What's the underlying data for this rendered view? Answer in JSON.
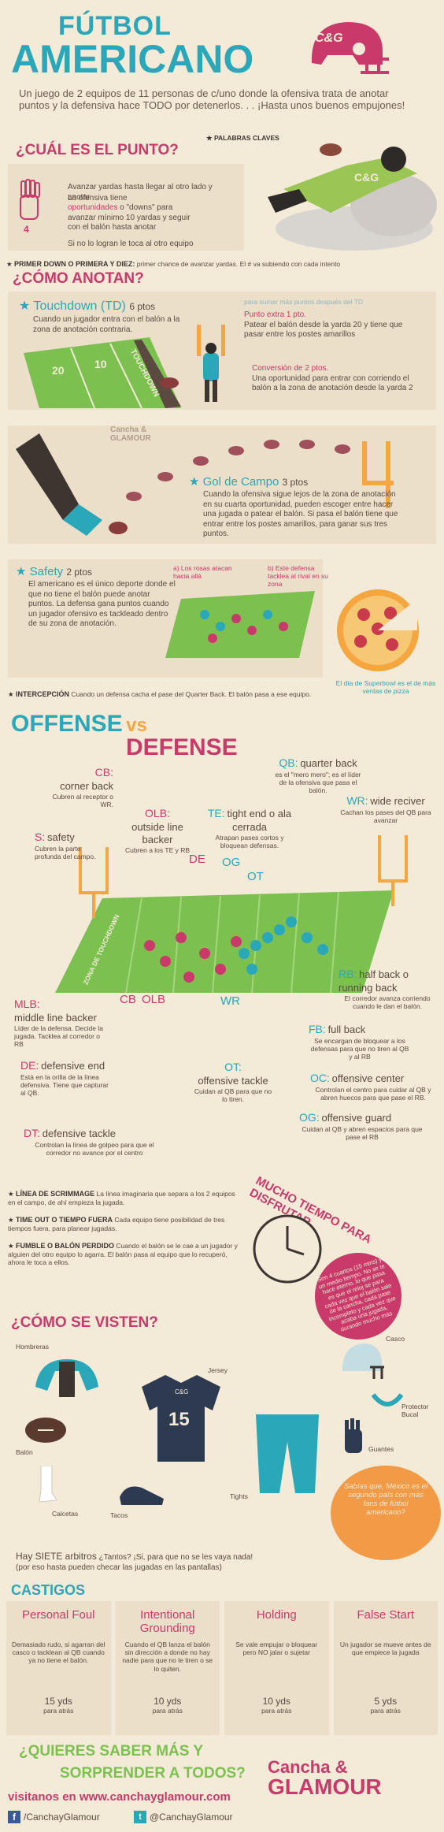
{
  "header": {
    "title_line1": "FÚTBOL",
    "title_line2": "AMERICANO",
    "badge": "C&G",
    "intro": "Un juego de 2 equipos de 11 personas de c/uno donde la ofensiva trata de anotar puntos y la defensiva hace TODO por detenerlos. . . ¡Hasta unos buenos empujones!",
    "keywords_label": "PALABRAS CLAVES"
  },
  "punto": {
    "heading": "¿CUÁL ES EL PUNTO?",
    "text1": "Avanzar yardas hasta llegar al otro lado y anotar",
    "text2": "La ofensiva tiene",
    "text3a": "oportunidades",
    "text3b": "o \"downs\" para avanzar mínimo 10 yardas y seguir con el balón hasta anotar",
    "text4": "Si no lo logran le toca al otro equipo",
    "hand_num": "4"
  },
  "downs": {
    "label": "PRIMER DOWN O PRIMERA Y DIEZ:",
    "text": "primer chance de avanzar yardas. El # va subiendo con cada intento"
  },
  "anotan": {
    "heading": "¿CÓMO ANOTAN?",
    "td_title": "Touchdown (TD)",
    "td_pts": "6 ptos",
    "td_text": "Cuando un jugador entra con el balón a la zona de anotación contraria.",
    "after_td": "para sumar más puntos después del TD",
    "extra_title": "Punto extra 1 pto.",
    "extra_text": "Patear el balón desde la yarda 20 y tiene que pasar entre los postes amarillos",
    "conv_title": "Conversión de 2 ptos.",
    "conv_text": "Una oportunidad para entrar con corriendo el balón a la zona de anotación desde la yarda 2",
    "field_words": [
      "TOUCHDOWN",
      "20",
      "10"
    ],
    "gol_title": "Gol de Campo",
    "gol_pts": "3 ptos",
    "gol_text": "Cuando la ofensiva sigue lejos de la zona de anotación en su cuarta oportunidad, pueden escoger entre hacer una jugada o patear el balón. Si pasa el balón tiene que entrar entre los postes amarillos, para ganar sus tres puntos.",
    "safety_title": "Safety",
    "safety_pts": "2 ptos",
    "safety_text": "El americano es el único deporte donde el que no tiene el balón puede anotar puntos. La defensa gana puntos cuando un jugador ofensivo es tackleado dentro de su zona de anotación.",
    "safety_a": "a) Los rosas atacan hacia allá",
    "safety_b": "b) Este defensa tacklea al rival en su zona",
    "pizza_text": "El día de Superbowl es el de más ventas de pizza"
  },
  "intercepcion": {
    "label": "INTERCEPCIÓN",
    "text": "Cuando un defensa cacha el pase del Quarter Back. El balón pasa a ese equipo."
  },
  "offense": {
    "title1": "OFFENSE",
    "vs": "vs",
    "title2": "DEFENSE",
    "cb_title": "CB:",
    "cb_sub": "corner back",
    "cb_text": "Cubren al receptor o WR.",
    "olb_title": "OLB:",
    "olb_sub": "outside line backer",
    "olb_text": "Cubren a los TE y RB",
    "s_title": "S:",
    "s_sub": "safety",
    "s_text": "Cubren la parte profunda del campo.",
    "qb_title": "QB:",
    "qb_sub": "quarter back",
    "qb_text": "es el \"mero mero\"; es el líder de la ofensiva que pasa el balón.",
    "te_title": "TE:",
    "te_sub": "tight end o ala cerrada",
    "te_text": "Atrapan pases cortos y bloquean defensas.",
    "wr_title": "WR:",
    "wr_sub": "wide reciver",
    "wr_text": "Cachan los pases del QB para avanzar",
    "field_labels": [
      "DE",
      "OG",
      "OT",
      "CB",
      "OLB",
      "WR"
    ],
    "zone_left": "ZONA DE TOUCHDOWN",
    "zone_right": "ZONA DE TOUCHDOWN",
    "rb_title": "RB:",
    "rb_sub": "half back o running back",
    "rb_text": "El corredor avanza corriendo cuando le dan el balón.",
    "mlb_title": "MLB:",
    "mlb_sub": "middle line backer",
    "mlb_text": "Líder de la defensa. Decide la jugada. Tacklea al corredor o RB",
    "fb_title": "FB:",
    "fb_sub": "full back",
    "fb_text": "Se encargan de bloquear a los defensas para que no tiren al QB y al RB",
    "de_title": "DE:",
    "de_sub": "defensive end",
    "de_text": "Está en la orilla de la línea defensiva. Tiene que capturar al QB.",
    "ot_title": "OT:",
    "ot_sub": "offensive tackle",
    "ot_text": "Cuidan al QB para que no lo tiren.",
    "oc_title": "OC:",
    "oc_sub": "offensive center",
    "oc_text": "Controlan el centro para cuidar al QB y abren huecos para que pase el RB.",
    "dt_title": "DT:",
    "dt_sub": "defensive tackle",
    "dt_text": "Controlan la línea de golpeo para que el corredor no avance por el centro",
    "og_title": "OG:",
    "og_sub": "offensive guard",
    "og_text": "Cuidan al QB y abren espacios para que pase el RB"
  },
  "defs": [
    {
      "label": "LÍNEA DE SCRIMMAGE",
      "text": "La línea imaginaria que separa a los 2 equipos en el campo, de ahí empieza la jugada."
    },
    {
      "label": "TIME OUT O TIEMPO FUERA",
      "text": "Cada equipo tiene posibilidad de tres tiempos fuera, para planear jugadas."
    },
    {
      "label": "FUMBLE O BALÓN PERDIDO",
      "text": "Cuando el balón se le cae a un jugador y alguien del otro equipo lo agarra. El balón pasa al equipo que lo recuperó, ahora le toca a ellos."
    }
  ],
  "tiempo": {
    "title": "MUCHO TIEMPO PARA DISFRUTAR",
    "bubble": "Son 4 cuartos (15 mins) y un medio tiempo. No se te hace eterno, lo que pasa es que el reloj se para cada vez que el balón sale de la cancha, cada pase incompleto y cada vez que acaba una jugada, durando mucho más"
  },
  "visten": {
    "heading": "¿CÓMO SE VISTEN?",
    "hombreras": "Hombreras",
    "jersey": "Jersey",
    "jersey_num": "15",
    "jersey_badge": "C&G",
    "casco": "Casco",
    "protector": "Protector Bucal",
    "balon": "Balón",
    "guantes": "Guantes",
    "calcetas": "Calcetas",
    "tacos": "Tacos",
    "tights": "Tights",
    "mexico": "Sabías que, México es el segundo país con más fans de fútbol americano?"
  },
  "arbitros": {
    "text1": "Hay SIETE arbitros",
    "text2": "¿Tantos? ¡Si, para que no se les vaya nada!",
    "text3": "(por eso hasta pueden checar las jugadas en las pantallas)"
  },
  "castigos": {
    "heading": "CASTIGOS",
    "items": [
      {
        "title": "Personal Foul",
        "text": "Demasiado rudo, si agarran del casco o tacklean al QB cuando ya no tiene el balón.",
        "yds": "15 yds",
        "dir": "para atrás"
      },
      {
        "title": "Intentional Grounding",
        "text": "Cuando el QB lanza el balón sin dirección a donde no hay nadie para que no le tiren o se lo quiten.",
        "yds": "10 yds",
        "dir": "para atrás"
      },
      {
        "title": "Holding",
        "text": "Se vale empujar o bloquear pero NO jalar o sujetar",
        "yds": "10 yds",
        "dir": "para atrás"
      },
      {
        "title": "False Start",
        "text": "Un jugador se mueve antes de que empiece la jugada",
        "yds": "5 yds",
        "dir": "para atrás"
      }
    ]
  },
  "footer": {
    "q1": "¿QUIERES SABER MÁS Y",
    "q2": "SORPRENDER A TODOS?",
    "visit": "visitanos en www.canchayglamour.com",
    "brand1": "Cancha &",
    "brand2": "GLAMOUR",
    "fb": "/CanchayGlamour",
    "tw": "@CanchayGlamour"
  },
  "colors": {
    "pink": "#c93a6a",
    "teal": "#2aa7b8",
    "cream": "#f3ead8",
    "green": "#7cc04f",
    "orange": "#f29a45"
  }
}
